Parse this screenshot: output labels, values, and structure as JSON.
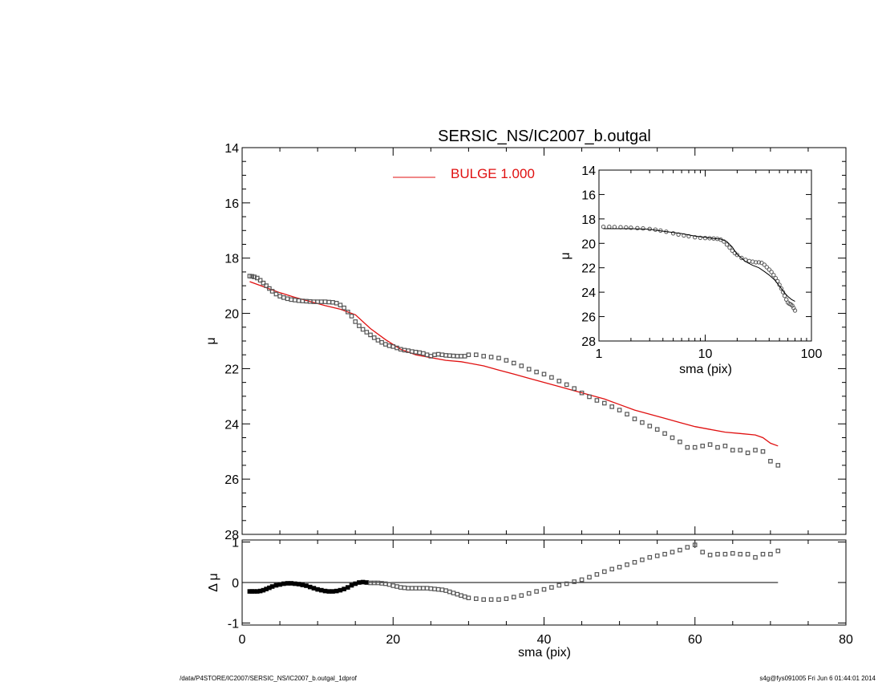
{
  "footer": {
    "left": "/data/P4STORE/IC2007/SERSIC_NS/IC2007_b.outgal_1dprof",
    "right": "s4g@fys091005  Fri Jun  6 01:44:01 2014"
  },
  "colors": {
    "model": "#e01010",
    "data_marker": "#555555",
    "axis": "#000000"
  },
  "chart_data": [
    {
      "id": "main",
      "type": "scatter",
      "title": "SERSIC_NS/IC2007_b.outgal",
      "xlabel": "",
      "ylabel": "μ",
      "xlim": [
        0,
        80
      ],
      "ylim": [
        28,
        14
      ],
      "y_inverted": true,
      "yticks": [
        14,
        16,
        18,
        20,
        22,
        24,
        26,
        28
      ],
      "legend": {
        "position": "top-center",
        "entries": [
          {
            "label": "BULGE  1.000",
            "color": "#e01010"
          }
        ]
      },
      "series": [
        {
          "name": "BULGE  1.000",
          "kind": "line",
          "x": [
            1,
            3,
            5,
            7,
            9,
            11,
            13,
            15,
            17,
            19,
            21,
            23,
            25,
            27,
            29,
            30,
            32,
            34,
            36,
            38,
            40,
            42,
            44,
            46,
            48,
            50,
            52,
            54,
            56,
            58,
            60,
            62,
            64,
            66,
            68,
            69,
            70,
            71
          ],
          "y": [
            18.85,
            19.05,
            19.25,
            19.42,
            19.57,
            19.72,
            19.85,
            20.05,
            20.55,
            20.95,
            21.3,
            21.5,
            21.6,
            21.7,
            21.75,
            21.8,
            21.9,
            22.05,
            22.2,
            22.35,
            22.5,
            22.65,
            22.8,
            22.95,
            23.1,
            23.3,
            23.5,
            23.65,
            23.8,
            23.95,
            24.1,
            24.2,
            24.3,
            24.35,
            24.4,
            24.5,
            24.7,
            24.8
          ]
        },
        {
          "kind": "markers",
          "x": [
            1,
            1.3,
            1.6,
            2,
            2.4,
            2.8,
            3.2,
            3.6,
            4,
            4.5,
            5,
            5.5,
            6,
            6.5,
            7,
            7.5,
            8,
            8.5,
            9,
            9.5,
            10,
            10.5,
            11,
            11.5,
            12,
            12.5,
            13,
            13.5,
            14,
            14.5,
            15,
            15.5,
            16,
            16.5,
            17,
            17.5,
            18,
            18.5,
            19,
            19.5,
            20,
            20.5,
            21,
            21.5,
            22,
            22.5,
            23,
            23.5,
            24,
            24.5,
            25,
            25.5,
            26,
            26.5,
            27,
            27.5,
            28,
            28.5,
            29,
            29.5,
            30,
            31,
            32,
            33,
            34,
            35,
            36,
            37,
            38,
            39,
            40,
            41,
            42,
            43,
            44,
            45,
            46,
            47,
            48,
            49,
            50,
            51,
            52,
            53,
            54,
            55,
            56,
            57,
            58,
            59,
            60,
            61,
            62,
            63,
            64,
            65,
            66,
            67,
            68,
            69,
            70,
            71
          ],
          "y": [
            18.65,
            18.66,
            18.68,
            18.72,
            18.8,
            18.9,
            19.0,
            19.1,
            19.2,
            19.3,
            19.38,
            19.43,
            19.47,
            19.5,
            19.52,
            19.54,
            19.55,
            19.56,
            19.57,
            19.58,
            19.58,
            19.58,
            19.58,
            19.59,
            19.6,
            19.63,
            19.7,
            19.8,
            19.95,
            20.1,
            20.3,
            20.45,
            20.58,
            20.68,
            20.78,
            20.88,
            20.97,
            21.05,
            21.12,
            21.17,
            21.2,
            21.25,
            21.3,
            21.33,
            21.35,
            21.38,
            21.4,
            21.42,
            21.45,
            21.5,
            21.55,
            21.5,
            21.48,
            21.5,
            21.52,
            21.53,
            21.54,
            21.55,
            21.55,
            21.55,
            21.5,
            21.5,
            21.55,
            21.58,
            21.62,
            21.7,
            21.8,
            21.9,
            22.02,
            22.12,
            22.2,
            22.32,
            22.45,
            22.58,
            22.72,
            22.88,
            23.02,
            23.15,
            23.25,
            23.38,
            23.5,
            23.65,
            23.82,
            23.95,
            24.08,
            24.2,
            24.35,
            24.5,
            24.65,
            24.85,
            24.85,
            24.8,
            24.75,
            24.85,
            24.8,
            24.95,
            24.95,
            25.05,
            24.95,
            25.0,
            25.35,
            25.5
          ]
        }
      ]
    },
    {
      "id": "inset",
      "type": "scatter",
      "xlabel": "sma (pix)",
      "ylabel": "μ",
      "xscale": "log",
      "xlim": [
        1,
        100
      ],
      "xticks": [
        1,
        10,
        100
      ],
      "ylim": [
        28,
        14
      ],
      "yticks": [
        14,
        16,
        18,
        20,
        22,
        24,
        26,
        28
      ],
      "series": [
        {
          "kind": "line",
          "x": [
            1.1,
            1.5,
            2,
            3,
            4,
            6,
            8,
            10,
            12,
            14,
            16,
            18,
            20,
            24,
            28,
            32,
            36,
            40,
            45,
            50,
            55,
            60,
            65,
            70
          ],
          "y": [
            18.8,
            18.8,
            18.8,
            18.85,
            19.0,
            19.2,
            19.4,
            19.5,
            19.6,
            19.65,
            19.85,
            20.3,
            20.9,
            21.5,
            21.8,
            22.0,
            22.3,
            22.6,
            23.0,
            23.5,
            24.0,
            24.35,
            24.6,
            24.75
          ]
        },
        {
          "kind": "markers",
          "x": [
            1.1,
            1.25,
            1.4,
            1.6,
            1.8,
            2,
            2.3,
            2.6,
            3,
            3.4,
            3.8,
            4.3,
            5,
            5.6,
            6.3,
            7,
            8,
            9,
            10,
            11,
            12,
            13,
            14,
            15,
            16,
            17,
            18,
            19,
            20,
            22,
            24,
            26,
            28,
            30,
            32,
            34,
            36,
            38,
            40,
            42,
            44,
            46,
            48,
            50,
            52,
            54,
            56,
            58,
            60,
            62,
            64,
            66,
            68,
            70
          ],
          "y": [
            18.65,
            18.65,
            18.66,
            18.68,
            18.7,
            18.72,
            18.75,
            18.78,
            18.82,
            18.88,
            18.95,
            19.05,
            19.18,
            19.28,
            19.36,
            19.42,
            19.5,
            19.55,
            19.57,
            19.58,
            19.6,
            19.63,
            19.7,
            19.85,
            20.1,
            20.35,
            20.6,
            20.8,
            20.95,
            21.2,
            21.35,
            21.45,
            21.5,
            21.55,
            21.55,
            21.6,
            21.75,
            21.95,
            22.15,
            22.35,
            22.6,
            22.85,
            23.1,
            23.4,
            23.7,
            24.0,
            24.3,
            24.6,
            24.85,
            24.95,
            25.0,
            25.1,
            25.3,
            25.5
          ]
        }
      ]
    },
    {
      "id": "residual",
      "type": "scatter",
      "xlabel": "sma (pix)",
      "ylabel": "Δ μ",
      "xlim": [
        0,
        80
      ],
      "xticks": [
        0,
        20,
        40,
        60,
        80
      ],
      "ylim": [
        -1.05,
        1.05
      ],
      "yticks": [
        -1,
        0,
        1
      ],
      "reference_line": {
        "y": 0,
        "x_range": [
          1,
          71
        ]
      },
      "series": [
        {
          "kind": "markers",
          "x": [
            1,
            1.3,
            1.6,
            2,
            2.4,
            2.8,
            3.2,
            3.6,
            4,
            4.5,
            5,
            5.5,
            6,
            6.5,
            7,
            7.5,
            8,
            8.5,
            9,
            9.5,
            10,
            10.5,
            11,
            11.5,
            12,
            12.5,
            13,
            13.5,
            14,
            14.5,
            15,
            15.5,
            16,
            16.5,
            17,
            17.5,
            18,
            18.5,
            19,
            19.5,
            20,
            20.5,
            21,
            21.5,
            22,
            22.5,
            23,
            23.5,
            24,
            24.5,
            25,
            25.5,
            26,
            26.5,
            27,
            27.5,
            28,
            28.5,
            29,
            29.5,
            30,
            31,
            32,
            33,
            34,
            35,
            36,
            37,
            38,
            39,
            40,
            41,
            42,
            43,
            44,
            45,
            46,
            47,
            48,
            49,
            50,
            51,
            52,
            53,
            54,
            55,
            56,
            57,
            58,
            59,
            60,
            61,
            62,
            63,
            64,
            65,
            66,
            67,
            68,
            69,
            70,
            71
          ],
          "y": [
            -0.22,
            -0.22,
            -0.22,
            -0.22,
            -0.21,
            -0.19,
            -0.16,
            -0.13,
            -0.1,
            -0.07,
            -0.05,
            -0.03,
            -0.02,
            -0.02,
            -0.03,
            -0.04,
            -0.06,
            -0.08,
            -0.11,
            -0.14,
            -0.17,
            -0.19,
            -0.21,
            -0.22,
            -0.22,
            -0.21,
            -0.19,
            -0.16,
            -0.12,
            -0.07,
            -0.03,
            0.0,
            0.01,
            0.0,
            -0.01,
            -0.01,
            -0.01,
            -0.02,
            -0.03,
            -0.05,
            -0.08,
            -0.1,
            -0.12,
            -0.13,
            -0.14,
            -0.14,
            -0.14,
            -0.14,
            -0.14,
            -0.14,
            -0.15,
            -0.16,
            -0.17,
            -0.18,
            -0.2,
            -0.23,
            -0.26,
            -0.29,
            -0.32,
            -0.35,
            -0.38,
            -0.4,
            -0.42,
            -0.42,
            -0.42,
            -0.4,
            -0.36,
            -0.32,
            -0.27,
            -0.22,
            -0.17,
            -0.12,
            -0.07,
            -0.03,
            0.02,
            0.07,
            0.13,
            0.2,
            0.27,
            0.33,
            0.38,
            0.44,
            0.5,
            0.56,
            0.62,
            0.66,
            0.7,
            0.75,
            0.8,
            0.87,
            0.93,
            0.75,
            0.68,
            0.7,
            0.7,
            0.72,
            0.7,
            0.7,
            0.62,
            0.7,
            0.7,
            0.78
          ]
        }
      ]
    }
  ]
}
